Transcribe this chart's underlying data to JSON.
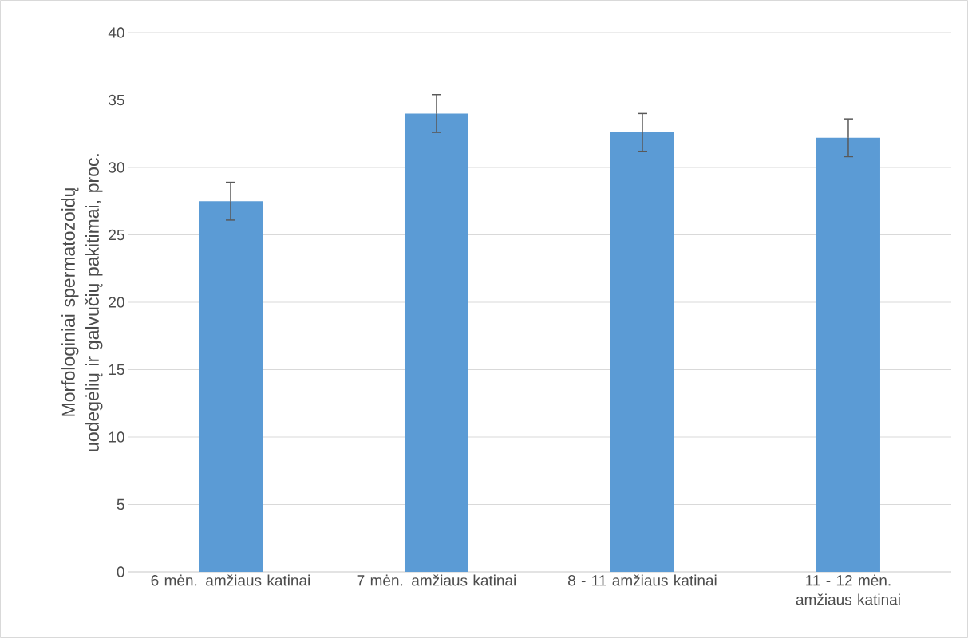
{
  "chart_data": {
    "type": "bar",
    "ylabel": "Morfologiniai spermatozoidų uodegėlių ir galvučių pakitimai, proc.",
    "categories": [
      "6 mėn. amžiaus katinai",
      "7 mėn. amžiaus katinai",
      "8 - 11  amžiaus katinai",
      "11 - 12 mėn. amžiaus katinai"
    ],
    "values": [
      27.5,
      34.0,
      32.6,
      32.2
    ],
    "errors": [
      1.4,
      1.4,
      1.4,
      1.4
    ],
    "color": "#5b9bd5",
    "ylim": [
      0,
      40
    ],
    "yticks": [
      0,
      5,
      10,
      15,
      20,
      25,
      30,
      35,
      40
    ],
    "grid": "y"
  }
}
